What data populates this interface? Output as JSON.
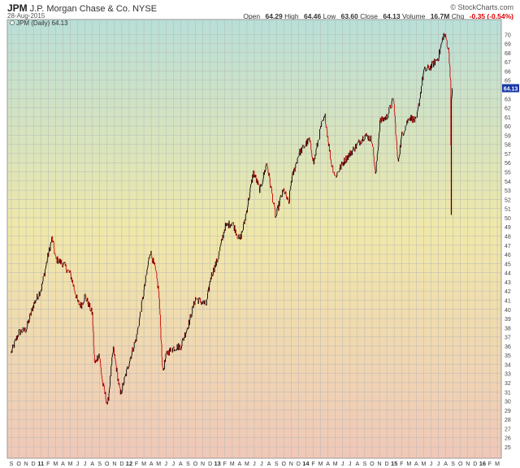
{
  "header": {
    "symbol": "JPM",
    "company": "J.P. Morgan Chase & Co. NYSE",
    "date": "28-Aug-2015",
    "brand": "© StockCharts.com",
    "stats": [
      {
        "label": "Open",
        "value": "64.29"
      },
      {
        "label": "High",
        "value": "64.46"
      },
      {
        "label": "Low",
        "value": "63.60"
      },
      {
        "label": "Close",
        "value": "64.13"
      },
      {
        "label": "Volume",
        "value": "16.7M"
      },
      {
        "label": "Chg",
        "value": "-0.35 (-0.54%)"
      }
    ]
  },
  "colors": {
    "up": "#000000",
    "down": "#cc0000",
    "last_price_tag": "#1a3aa8",
    "gradient_top": "#b8dfd8",
    "gradient_mid": "#f0e8a8",
    "gradient_bottom": "#f0c8b8"
  },
  "chart_data": {
    "type": "line",
    "legend": "JPM (Daily) 64.13",
    "legend_position": "top-left",
    "last_price": "64.13",
    "grid": true,
    "ylim": [
      25,
      71
    ],
    "yticks": [
      "25",
      "26",
      "27",
      "28",
      "29",
      "30",
      "31",
      "32",
      "33",
      "34",
      "35",
      "36",
      "37",
      "38",
      "39",
      "40",
      "41",
      "42",
      "43",
      "44",
      "45",
      "46",
      "47",
      "48",
      "49",
      "50",
      "51",
      "52",
      "53",
      "54",
      "55",
      "56",
      "57",
      "58",
      "59",
      "60",
      "61",
      "62",
      "63",
      "64",
      "65",
      "66",
      "67",
      "68",
      "69",
      "70"
    ],
    "xtick_labels": [
      "S",
      "O",
      "N",
      "D",
      "11",
      "F",
      "M",
      "A",
      "M",
      "J",
      "J",
      "A",
      "S",
      "O",
      "N",
      "D",
      "12",
      "F",
      "M",
      "A",
      "M",
      "J",
      "J",
      "A",
      "S",
      "O",
      "N",
      "D",
      "13",
      "F",
      "M",
      "A",
      "M",
      "J",
      "J",
      "A",
      "S",
      "O",
      "N",
      "D",
      "14",
      "F",
      "M",
      "A",
      "M",
      "J",
      "J",
      "A",
      "S",
      "O",
      "N",
      "D",
      "15",
      "F",
      "M",
      "A",
      "M",
      "J",
      "J",
      "A",
      "S",
      "O",
      "N",
      "D",
      "16",
      "F",
      "M"
    ],
    "x_start": "2010-09",
    "x_end": "2016-03",
    "series": [
      {
        "x": [
          "2010-08-30",
          "2010-10-01",
          "2010-11-01",
          "2010-12-01",
          "2011-01-03",
          "2011-02-01",
          "2011-02-16",
          "2011-03-01",
          "2011-04-01",
          "2011-05-02",
          "2011-06-01",
          "2011-06-15",
          "2011-07-01",
          "2011-08-01",
          "2011-08-10",
          "2011-08-29",
          "2011-09-12",
          "2011-10-03",
          "2011-10-27",
          "2011-11-25",
          "2011-12-15",
          "2012-01-03",
          "2012-02-01",
          "2012-03-01",
          "2012-03-27",
          "2012-04-16",
          "2012-05-01",
          "2012-05-18",
          "2012-06-04",
          "2012-07-02",
          "2012-08-01",
          "2012-09-04",
          "2012-10-01",
          "2012-11-15",
          "2012-12-03",
          "2013-01-02",
          "2013-02-01",
          "2013-03-01",
          "2013-04-01",
          "2013-04-18",
          "2013-05-01",
          "2013-05-28",
          "2013-06-24",
          "2013-07-22",
          "2013-08-01",
          "2013-08-29",
          "2013-09-16",
          "2013-10-01",
          "2013-10-22",
          "2013-11-01",
          "2013-12-02",
          "2013-12-31",
          "2014-01-15",
          "2014-02-03",
          "2014-03-03",
          "2014-03-20",
          "2014-04-14",
          "2014-05-01",
          "2014-06-02",
          "2014-07-01",
          "2014-08-01",
          "2014-09-02",
          "2014-10-01",
          "2014-10-15",
          "2014-11-03",
          "2014-12-01",
          "2014-12-29",
          "2015-01-16",
          "2015-02-02",
          "2015-03-02",
          "2015-04-01",
          "2015-05-01",
          "2015-06-01",
          "2015-07-01",
          "2015-07-23",
          "2015-08-03",
          "2015-08-14",
          "2015-08-21",
          "2015-08-24",
          "2015-08-25",
          "2015-08-28"
        ],
        "values": [
          35.2,
          37.5,
          37.8,
          40.5,
          42.3,
          46.0,
          47.8,
          45.5,
          45.0,
          43.8,
          40.8,
          40.4,
          41.5,
          39.5,
          34.0,
          35.2,
          32.0,
          29.5,
          35.8,
          30.7,
          32.6,
          34.5,
          37.0,
          42.0,
          46.4,
          44.5,
          42.0,
          33.2,
          35.2,
          35.8,
          36.0,
          38.5,
          41.2,
          40.5,
          43.5,
          45.5,
          49.0,
          49.5,
          47.5,
          49.2,
          51.0,
          55.0,
          53.0,
          56.0,
          54.5,
          50.0,
          52.0,
          53.0,
          51.5,
          54.0,
          57.0,
          58.0,
          58.5,
          56.0,
          60.0,
          61.0,
          56.0,
          54.5,
          56.0,
          57.0,
          58.0,
          59.0,
          58.5,
          54.5,
          60.5,
          61.0,
          63.0,
          56.0,
          59.0,
          61.0,
          60.5,
          66.0,
          66.5,
          67.5,
          70.0,
          69.5,
          68.0,
          65.0,
          50.0,
          63.0,
          64.13
        ]
      }
    ]
  }
}
